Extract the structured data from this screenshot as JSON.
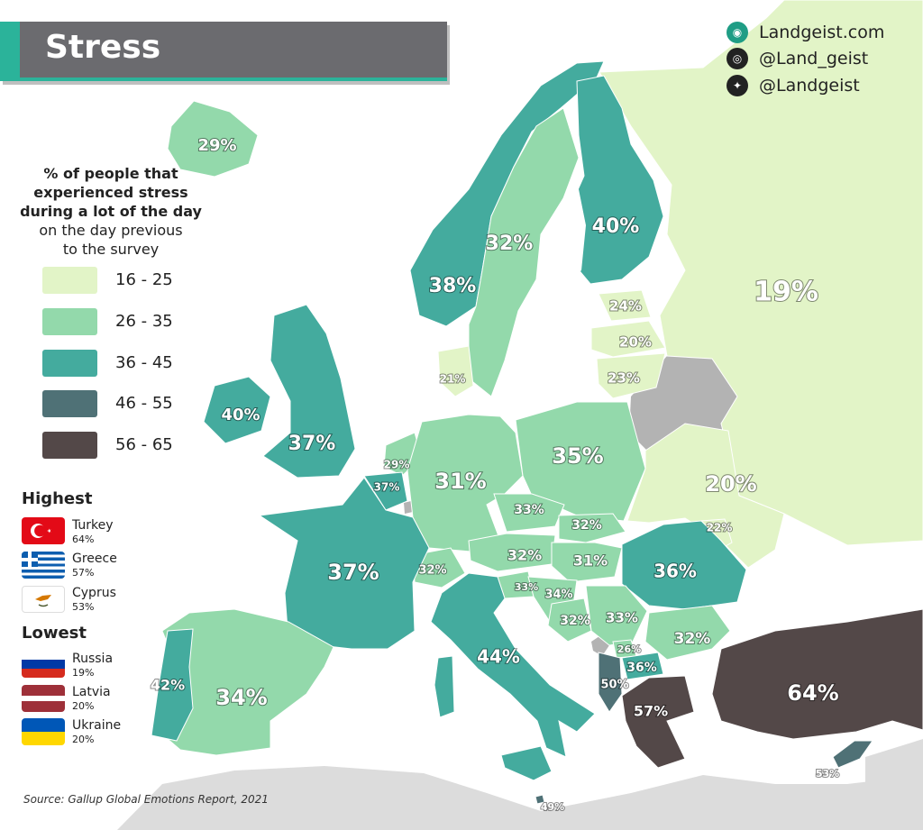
{
  "title": "Stress",
  "social": {
    "website": "Landgeist.com",
    "instagram": "@Land_geist",
    "twitter": "@Landgeist",
    "website_icon": "globe-icon",
    "instagram_icon": "instagram-icon",
    "twitter_icon": "twitter-icon"
  },
  "legend": {
    "title_bold": [
      "% of people that",
      "experienced stress",
      "during a lot of the day"
    ],
    "title_regular": [
      "on the day previous",
      "to the survey"
    ],
    "bins": [
      {
        "label": "16 - 25",
        "color": "#e2f4c7"
      },
      {
        "label": "26 - 35",
        "color": "#93d9ab"
      },
      {
        "label": "36 - 45",
        "color": "#44ab9e"
      },
      {
        "label": "46 - 55",
        "color": "#4f7176"
      },
      {
        "label": "56 - 65",
        "color": "#534848"
      }
    ]
  },
  "highest": {
    "heading": "Highest",
    "items": [
      {
        "country": "Turkey",
        "value": "64%",
        "flag": "turkey-flag"
      },
      {
        "country": "Greece",
        "value": "57%",
        "flag": "greece-flag"
      },
      {
        "country": "Cyprus",
        "value": "53%",
        "flag": "cyprus-flag"
      }
    ]
  },
  "lowest": {
    "heading": "Lowest",
    "items": [
      {
        "country": "Russia",
        "value": "19%",
        "flag": "russia-flag"
      },
      {
        "country": "Latvia",
        "value": "20%",
        "flag": "latvia-flag"
      },
      {
        "country": "Ukraine",
        "value": "20%",
        "flag": "ukraine-flag"
      }
    ]
  },
  "source": "Source: Gallup Global Emotions Report, 2021",
  "countries": [
    {
      "id": "iceland",
      "label": "29%",
      "bin": 1
    },
    {
      "id": "ireland",
      "label": "40%",
      "bin": 2
    },
    {
      "id": "uk",
      "label": "37%",
      "bin": 2
    },
    {
      "id": "norway",
      "label": "38%",
      "bin": 2
    },
    {
      "id": "sweden",
      "label": "32%",
      "bin": 1
    },
    {
      "id": "finland",
      "label": "40%",
      "bin": 2
    },
    {
      "id": "russia",
      "label": "19%",
      "bin": 0
    },
    {
      "id": "estonia",
      "label": "24%",
      "bin": 0
    },
    {
      "id": "latvia",
      "label": "20%",
      "bin": 0
    },
    {
      "id": "lithuania",
      "label": "23%",
      "bin": 0
    },
    {
      "id": "denmark",
      "label": "21%",
      "bin": 0
    },
    {
      "id": "netherlands",
      "label": "29%",
      "bin": 1
    },
    {
      "id": "belgium",
      "label": "37%",
      "bin": 2
    },
    {
      "id": "germany",
      "label": "31%",
      "bin": 1
    },
    {
      "id": "poland",
      "label": "35%",
      "bin": 1
    },
    {
      "id": "ukraine",
      "label": "20%",
      "bin": 0
    },
    {
      "id": "moldova",
      "label": "22%",
      "bin": 0
    },
    {
      "id": "czechia",
      "label": "33%",
      "bin": 1
    },
    {
      "id": "slovakia",
      "label": "32%",
      "bin": 1
    },
    {
      "id": "austria",
      "label": "32%",
      "bin": 1
    },
    {
      "id": "hungary",
      "label": "31%",
      "bin": 1
    },
    {
      "id": "switzerland",
      "label": "32%",
      "bin": 1
    },
    {
      "id": "france",
      "label": "37%",
      "bin": 2
    },
    {
      "id": "romania",
      "label": "36%",
      "bin": 2
    },
    {
      "id": "slovenia",
      "label": "33%",
      "bin": 1
    },
    {
      "id": "croatia",
      "label": "34%",
      "bin": 1
    },
    {
      "id": "bosnia",
      "label": "32%",
      "bin": 1
    },
    {
      "id": "serbia",
      "label": "33%",
      "bin": 1
    },
    {
      "id": "bulgaria",
      "label": "32%",
      "bin": 1
    },
    {
      "id": "kosovo",
      "label": "26%",
      "bin": 1
    },
    {
      "id": "north-macedonia",
      "label": "36%",
      "bin": 2
    },
    {
      "id": "albania",
      "label": "50%",
      "bin": 3
    },
    {
      "id": "italy",
      "label": "44%",
      "bin": 2
    },
    {
      "id": "spain",
      "label": "34%",
      "bin": 1
    },
    {
      "id": "portugal",
      "label": "42%",
      "bin": 2
    },
    {
      "id": "greece",
      "label": "57%",
      "bin": 4
    },
    {
      "id": "turkey",
      "label": "64%",
      "bin": 4
    },
    {
      "id": "cyprus",
      "label": "53%",
      "bin": 3
    },
    {
      "id": "malta",
      "label": "49%",
      "bin": 3
    }
  ]
}
